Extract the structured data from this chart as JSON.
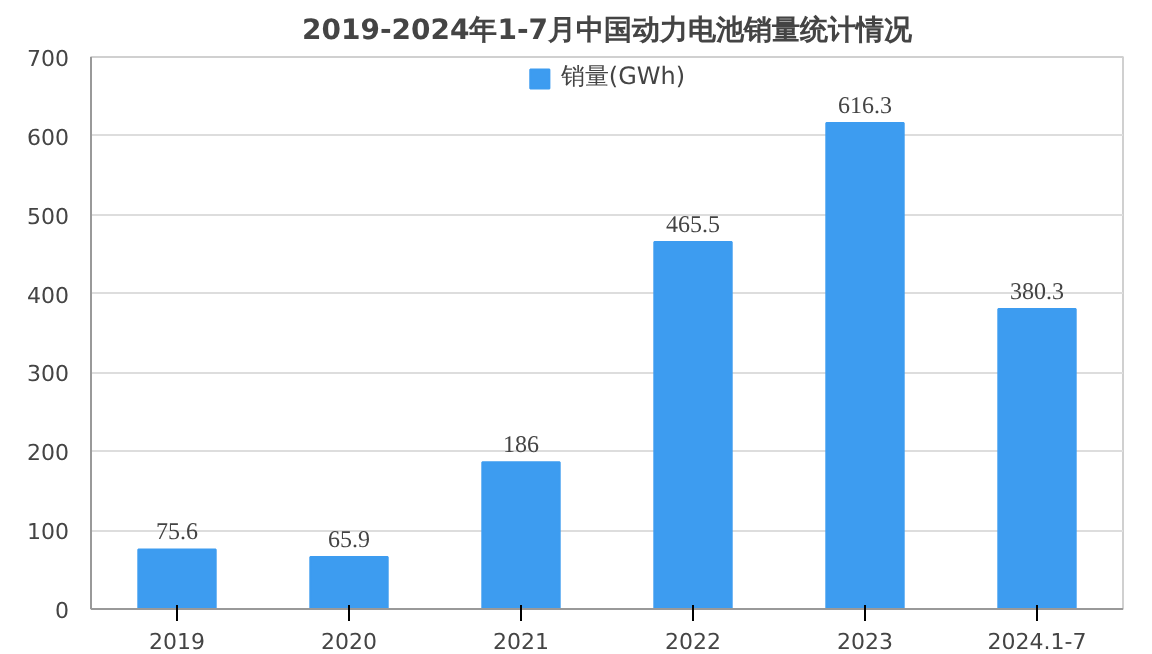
{
  "chart_data": {
    "type": "bar",
    "title": "2019-2024年1-7月中国动力电池销量统计情况",
    "categories": [
      "2019",
      "2020",
      "2021",
      "2022",
      "2023",
      "2024.1-7"
    ],
    "series": [
      {
        "name": "销量(GWh)",
        "color": "#3d9cf0",
        "values": [
          75.6,
          65.9,
          186,
          465.5,
          616.3,
          380.3
        ]
      }
    ],
    "ylim": [
      0,
      700
    ],
    "yticks": [
      0,
      100,
      200,
      300,
      400,
      500,
      600,
      700
    ],
    "grid": "y",
    "legend": "top",
    "data_labels": true
  }
}
